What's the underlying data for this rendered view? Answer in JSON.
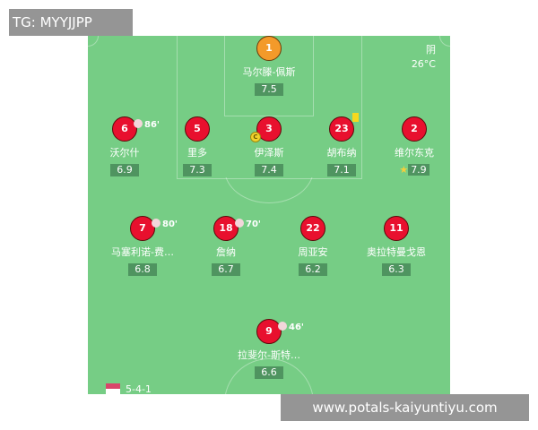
{
  "watermark_top": "TG: MYYJJPP",
  "watermark_bottom": "www.potals-kaiyuntiyu.com",
  "weather": {
    "condition": "阴",
    "temperature": "26°C"
  },
  "formation": "5-4-1",
  "goalkeeper": {
    "number": "1",
    "name": "马尔滕-佩斯",
    "rating": "7.5"
  },
  "defenders": [
    {
      "number": "6",
      "name": "沃尔什",
      "rating": "6.9",
      "sub": "86'"
    },
    {
      "number": "5",
      "name": "里多",
      "rating": "7.3"
    },
    {
      "number": "3",
      "name": "伊泽斯",
      "rating": "7.4",
      "captain": "C"
    },
    {
      "number": "23",
      "name": "胡布纳",
      "rating": "7.1",
      "yellow_card": true
    },
    {
      "number": "2",
      "name": "维尔东克",
      "rating": "7.9",
      "best_player": true
    }
  ],
  "midfielders": [
    {
      "number": "7",
      "name": "马塞利诺-费…",
      "rating": "6.8",
      "sub": "80'"
    },
    {
      "number": "18",
      "name": "詹纳",
      "rating": "6.7",
      "sub": "70'"
    },
    {
      "number": "22",
      "name": "周亚安",
      "rating": "6.2"
    },
    {
      "number": "11",
      "name": "奥拉特曼戈恩",
      "rating": "6.3"
    }
  ],
  "forwards": [
    {
      "number": "9",
      "name": "拉斐尔-斯特…",
      "rating": "6.6",
      "sub": "46'"
    }
  ],
  "colors": {
    "pitch": "#76cd85",
    "player": "#e8102e",
    "goalkeeper": "#f39a2a",
    "rating_bg": "#4f9460"
  }
}
